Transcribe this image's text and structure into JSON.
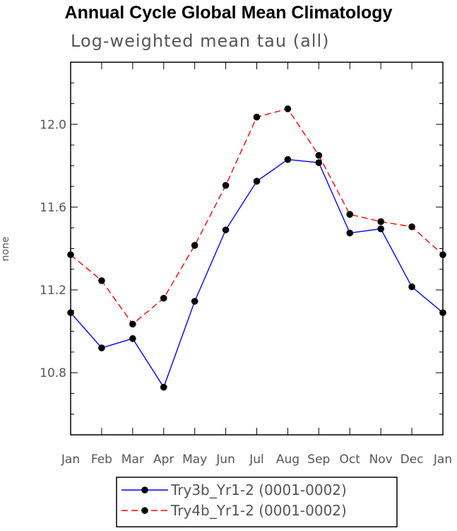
{
  "chart_data": {
    "type": "line",
    "title": "Annual Cycle Global Mean Climatology",
    "subtitle": "Log-weighted mean tau (all)",
    "ylabel": "none",
    "xlabel": "",
    "categories": [
      "Jan",
      "Feb",
      "Mar",
      "Apr",
      "May",
      "Jun",
      "Jul",
      "Aug",
      "Sep",
      "Oct",
      "Nov",
      "Dec",
      "Jan"
    ],
    "ylim": [
      10.5,
      12.3
    ],
    "yticks": [
      "10.8",
      "11.2",
      "11.6",
      "12.0"
    ],
    "series": [
      {
        "name": "Try3b_Yr1-2 (0001-0002)",
        "color": "#0000ff",
        "dash": "solid",
        "values": [
          11.09,
          10.92,
          10.965,
          10.73,
          11.145,
          11.49,
          11.725,
          11.83,
          11.815,
          11.475,
          11.495,
          11.215,
          11.09
        ]
      },
      {
        "name": "Try4b_Yr1-2 (0001-0002)",
        "color": "#ff0000",
        "dash": "dashed",
        "values": [
          11.37,
          11.245,
          11.035,
          11.16,
          11.415,
          11.705,
          12.035,
          12.075,
          11.85,
          11.565,
          11.53,
          11.505,
          11.37
        ]
      }
    ],
    "legend_position": "bottom"
  }
}
